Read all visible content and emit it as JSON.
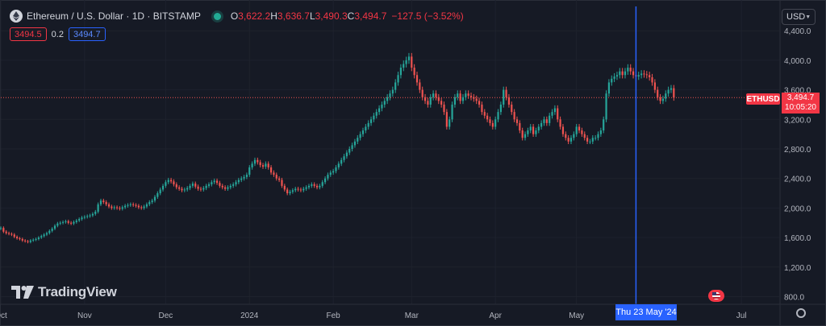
{
  "header": {
    "symbol_title": "Ethereum / U.S. Dollar · 1D · BITSTAMP",
    "ohlc": [
      {
        "key": "O",
        "value": "3,622.2"
      },
      {
        "key": "H",
        "value": "3,636.7"
      },
      {
        "key": "L",
        "value": "3,490.3"
      },
      {
        "key": "C",
        "value": "3,494.7"
      }
    ],
    "change": "−127.5 (−3.52%)"
  },
  "trade": {
    "bid": "3494.5",
    "spread": "0.2",
    "ask": "3494.7"
  },
  "currency_button": "USD",
  "branding": "TradingView",
  "crosshair_date_label": "Thu 23 May '24",
  "last_price": {
    "symbol": "ETHUSD",
    "price": "3,494.7",
    "countdown": "10:05:20"
  },
  "colors": {
    "background": "#161a25",
    "up": "#26a69a",
    "down": "#ef5350",
    "crosshair": "#2962ff",
    "grid": "#1e222d",
    "text": "#d1d4dc"
  },
  "chart_data": {
    "type": "candlestick",
    "title": "Ethereum / U.S. Dollar · 1D · BITSTAMP",
    "y_axis_ticks": [
      "4,400.0",
      "4,000.0",
      "3,600.0",
      "3,200.0",
      "2,800.0",
      "2,400.0",
      "2,000.0",
      "1,600.0",
      "1,200.0",
      "800.0"
    ],
    "x_axis_ticks": [
      "Oct",
      "Nov",
      "Dec",
      "2024",
      "Feb",
      "Mar",
      "Apr",
      "May",
      "Jul"
    ],
    "ylim": [
      750,
      4500
    ],
    "x_range": [
      "2023-10-01",
      "2024-07-15"
    ],
    "grid": true,
    "crosshair_date": "2024-05-23",
    "last_close": 3494.7,
    "series": [
      {
        "name": "ETHUSD",
        "start_date": "2023-09-20",
        "close": [
          1600,
          1620,
          1590,
          1620,
          1630,
          1650,
          1680,
          1700,
          1690,
          1710,
          1720,
          1730,
          1680,
          1660,
          1650,
          1640,
          1610,
          1590,
          1580,
          1560,
          1550,
          1540,
          1560,
          1570,
          1580,
          1600,
          1620,
          1640,
          1660,
          1690,
          1720,
          1760,
          1790,
          1800,
          1810,
          1820,
          1800,
          1790,
          1810,
          1830,
          1850,
          1870,
          1880,
          1890,
          1900,
          1920,
          1950,
          2050,
          2100,
          2080,
          2050,
          2020,
          2000,
          2010,
          2000,
          1990,
          2010,
          2030,
          2040,
          2050,
          2040,
          2030,
          2010,
          2000,
          2020,
          2050,
          2080,
          2100,
          2150,
          2200,
          2250,
          2300,
          2350,
          2380,
          2360,
          2320,
          2280,
          2260,
          2240,
          2250,
          2270,
          2300,
          2330,
          2290,
          2260,
          2250,
          2270,
          2300,
          2320,
          2350,
          2370,
          2340,
          2300,
          2280,
          2260,
          2280,
          2300,
          2320,
          2350,
          2380,
          2400,
          2420,
          2450,
          2550,
          2600,
          2650,
          2620,
          2580,
          2560,
          2600,
          2550,
          2480,
          2450,
          2400,
          2380,
          2300,
          2250,
          2200,
          2220,
          2240,
          2260,
          2250,
          2240,
          2260,
          2280,
          2300,
          2320,
          2300,
          2280,
          2300,
          2350,
          2400,
          2450,
          2480,
          2500,
          2550,
          2600,
          2650,
          2700,
          2750,
          2800,
          2850,
          2900,
          2950,
          3000,
          3050,
          3100,
          3150,
          3200,
          3250,
          3300,
          3350,
          3400,
          3450,
          3500,
          3550,
          3600,
          3700,
          3800,
          3900,
          3950,
          4000,
          4050,
          3900,
          3800,
          3700,
          3600,
          3500,
          3450,
          3400,
          3500,
          3550,
          3500,
          3450,
          3400,
          3300,
          3100,
          3200,
          3400,
          3500,
          3550,
          3450,
          3500,
          3550,
          3520,
          3500,
          3480,
          3450,
          3400,
          3300,
          3250,
          3200,
          3150,
          3100,
          3200,
          3300,
          3400,
          3600,
          3500,
          3400,
          3300,
          3200,
          3150,
          3050,
          2950,
          3000,
          3050,
          3100,
          3000,
          3050,
          3100,
          3150,
          3200,
          3150,
          3250,
          3300,
          3350,
          3200,
          3100,
          3000,
          2950,
          2900,
          2950,
          3000,
          3100,
          3050,
          3000,
          2950,
          2900,
          2900,
          2950,
          2950,
          3000,
          3050,
          3200,
          3550,
          3700,
          3750,
          3780,
          3800,
          3850,
          3800,
          3850,
          3900,
          3850,
          3800,
          3780,
          3800,
          3820,
          3810,
          3800,
          3770,
          3700,
          3600,
          3500,
          3450,
          3480,
          3550,
          3600,
          3622.2,
          3494.7
        ]
      }
    ]
  }
}
